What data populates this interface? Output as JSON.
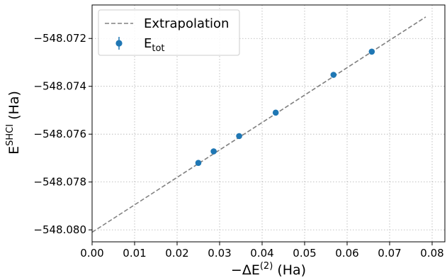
{
  "chart_data": {
    "type": "scatter",
    "title": "",
    "xlabel": {
      "main": "−ΔE",
      "sup": "(2)",
      "unit": " (Ha)"
    },
    "ylabel": {
      "main": "E",
      "sup": "SHCI",
      "unit": " (Ha)"
    },
    "xlim": [
      0.0,
      0.083
    ],
    "ylim": [
      -548.0805,
      -548.0706
    ],
    "xticks": [
      0.0,
      0.01,
      0.02,
      0.03,
      0.04,
      0.05,
      0.06,
      0.07,
      0.08
    ],
    "xtick_labels": [
      "0.00",
      "0.01",
      "0.02",
      "0.03",
      "0.04",
      "0.05",
      "0.06",
      "0.07",
      "0.08"
    ],
    "yticks": [
      -548.08,
      -548.078,
      -548.076,
      -548.074,
      -548.072
    ],
    "ytick_labels": [
      "−548.080",
      "−548.078",
      "−548.076",
      "−548.074",
      "−548.072"
    ],
    "grid": true,
    "legend": {
      "placement": "upper-left",
      "entries": [
        {
          "label": "Extrapolation"
        },
        {
          "label": "E",
          "sub": "tot"
        }
      ]
    },
    "series": [
      {
        "name": "Extrapolation",
        "kind": "line",
        "style": "dashed",
        "color": "#808080",
        "x": [
          0.0,
          0.0785
        ],
        "y": [
          -548.0801,
          -548.0711
        ]
      },
      {
        "name": "Etot",
        "kind": "scatter",
        "color": "#1f77b4",
        "x": [
          0.025,
          0.0286,
          0.0346,
          0.0432,
          0.0568,
          0.0658
        ],
        "y": [
          -548.0772,
          -548.07672,
          -548.07608,
          -548.0751,
          -548.07352,
          -548.07255
        ]
      }
    ]
  }
}
